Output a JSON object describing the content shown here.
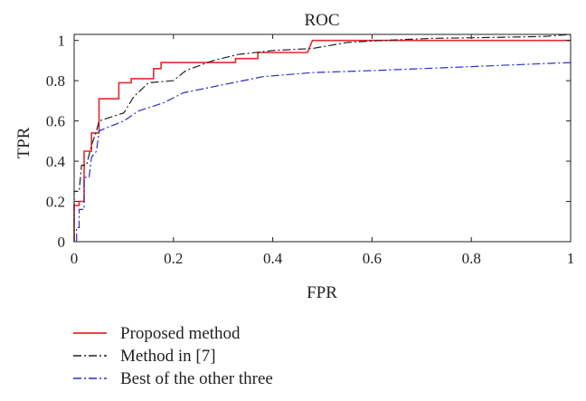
{
  "chart_data": {
    "type": "line",
    "title": "ROC",
    "xlabel": "FPR",
    "ylabel": "TPR",
    "xlim": [
      0,
      1
    ],
    "ylim": [
      0,
      1.03
    ],
    "x_ticks": [
      {
        "value": 0,
        "label": "0"
      },
      {
        "value": 0.2,
        "label": "0.2"
      },
      {
        "value": 0.4,
        "label": "0.4"
      },
      {
        "value": 0.6,
        "label": "0.6"
      },
      {
        "value": 0.8,
        "label": "0.8"
      },
      {
        "value": 1,
        "label": "1"
      }
    ],
    "y_ticks": [
      {
        "value": 0,
        "label": "0"
      },
      {
        "value": 0.2,
        "label": "0.2"
      },
      {
        "value": 0.4,
        "label": "0.4"
      },
      {
        "value": 0.6,
        "label": "0.6"
      },
      {
        "value": 0.8,
        "label": "0.8"
      },
      {
        "value": 1,
        "label": "1"
      }
    ],
    "grid": false,
    "legend_position": "below",
    "series": [
      {
        "name": "Proposed method",
        "color": "#e8262d",
        "style": "solid",
        "points": [
          [
            0,
            0
          ],
          [
            0,
            0.18
          ],
          [
            0.01,
            0.18
          ],
          [
            0.01,
            0.2
          ],
          [
            0.02,
            0.2
          ],
          [
            0.02,
            0.45
          ],
          [
            0.035,
            0.45
          ],
          [
            0.035,
            0.54
          ],
          [
            0.05,
            0.54
          ],
          [
            0.05,
            0.71
          ],
          [
            0.09,
            0.71
          ],
          [
            0.09,
            0.79
          ],
          [
            0.115,
            0.79
          ],
          [
            0.115,
            0.81
          ],
          [
            0.16,
            0.81
          ],
          [
            0.16,
            0.86
          ],
          [
            0.175,
            0.86
          ],
          [
            0.175,
            0.89
          ],
          [
            0.325,
            0.89
          ],
          [
            0.325,
            0.91
          ],
          [
            0.37,
            0.91
          ],
          [
            0.37,
            0.94
          ],
          [
            0.47,
            0.94
          ],
          [
            0.48,
            1.0
          ],
          [
            1.0,
            1.0
          ]
        ]
      },
      {
        "name": "Method in [7]",
        "color": "#231f20",
        "style": "dash-dot",
        "points": [
          [
            0,
            0
          ],
          [
            0,
            0.25
          ],
          [
            0.01,
            0.25
          ],
          [
            0.015,
            0.38
          ],
          [
            0.025,
            0.38
          ],
          [
            0.035,
            0.48
          ],
          [
            0.045,
            0.55
          ],
          [
            0.05,
            0.6
          ],
          [
            0.075,
            0.62
          ],
          [
            0.1,
            0.64
          ],
          [
            0.12,
            0.72
          ],
          [
            0.15,
            0.79
          ],
          [
            0.2,
            0.8
          ],
          [
            0.225,
            0.85
          ],
          [
            0.28,
            0.9
          ],
          [
            0.33,
            0.93
          ],
          [
            0.4,
            0.95
          ],
          [
            0.48,
            0.96
          ],
          [
            0.55,
            0.99
          ],
          [
            0.62,
            1.0
          ],
          [
            0.72,
            1.01
          ],
          [
            0.85,
            1.015
          ],
          [
            0.95,
            1.02
          ],
          [
            1.0,
            1.03
          ]
        ]
      },
      {
        "name": "Best of the other three",
        "color": "#2c2cc8",
        "style": "dash-dot",
        "points": [
          [
            0.005,
            0
          ],
          [
            0.005,
            0.07
          ],
          [
            0.01,
            0.07
          ],
          [
            0.01,
            0.16
          ],
          [
            0.02,
            0.16
          ],
          [
            0.02,
            0.32
          ],
          [
            0.03,
            0.32
          ],
          [
            0.035,
            0.42
          ],
          [
            0.045,
            0.45
          ],
          [
            0.05,
            0.55
          ],
          [
            0.1,
            0.6
          ],
          [
            0.13,
            0.65
          ],
          [
            0.18,
            0.69
          ],
          [
            0.22,
            0.74
          ],
          [
            0.3,
            0.78
          ],
          [
            0.38,
            0.82
          ],
          [
            0.48,
            0.84
          ],
          [
            0.6,
            0.85
          ],
          [
            0.7,
            0.86
          ],
          [
            0.8,
            0.87
          ],
          [
            0.9,
            0.88
          ],
          [
            1.0,
            0.89
          ]
        ]
      }
    ]
  }
}
